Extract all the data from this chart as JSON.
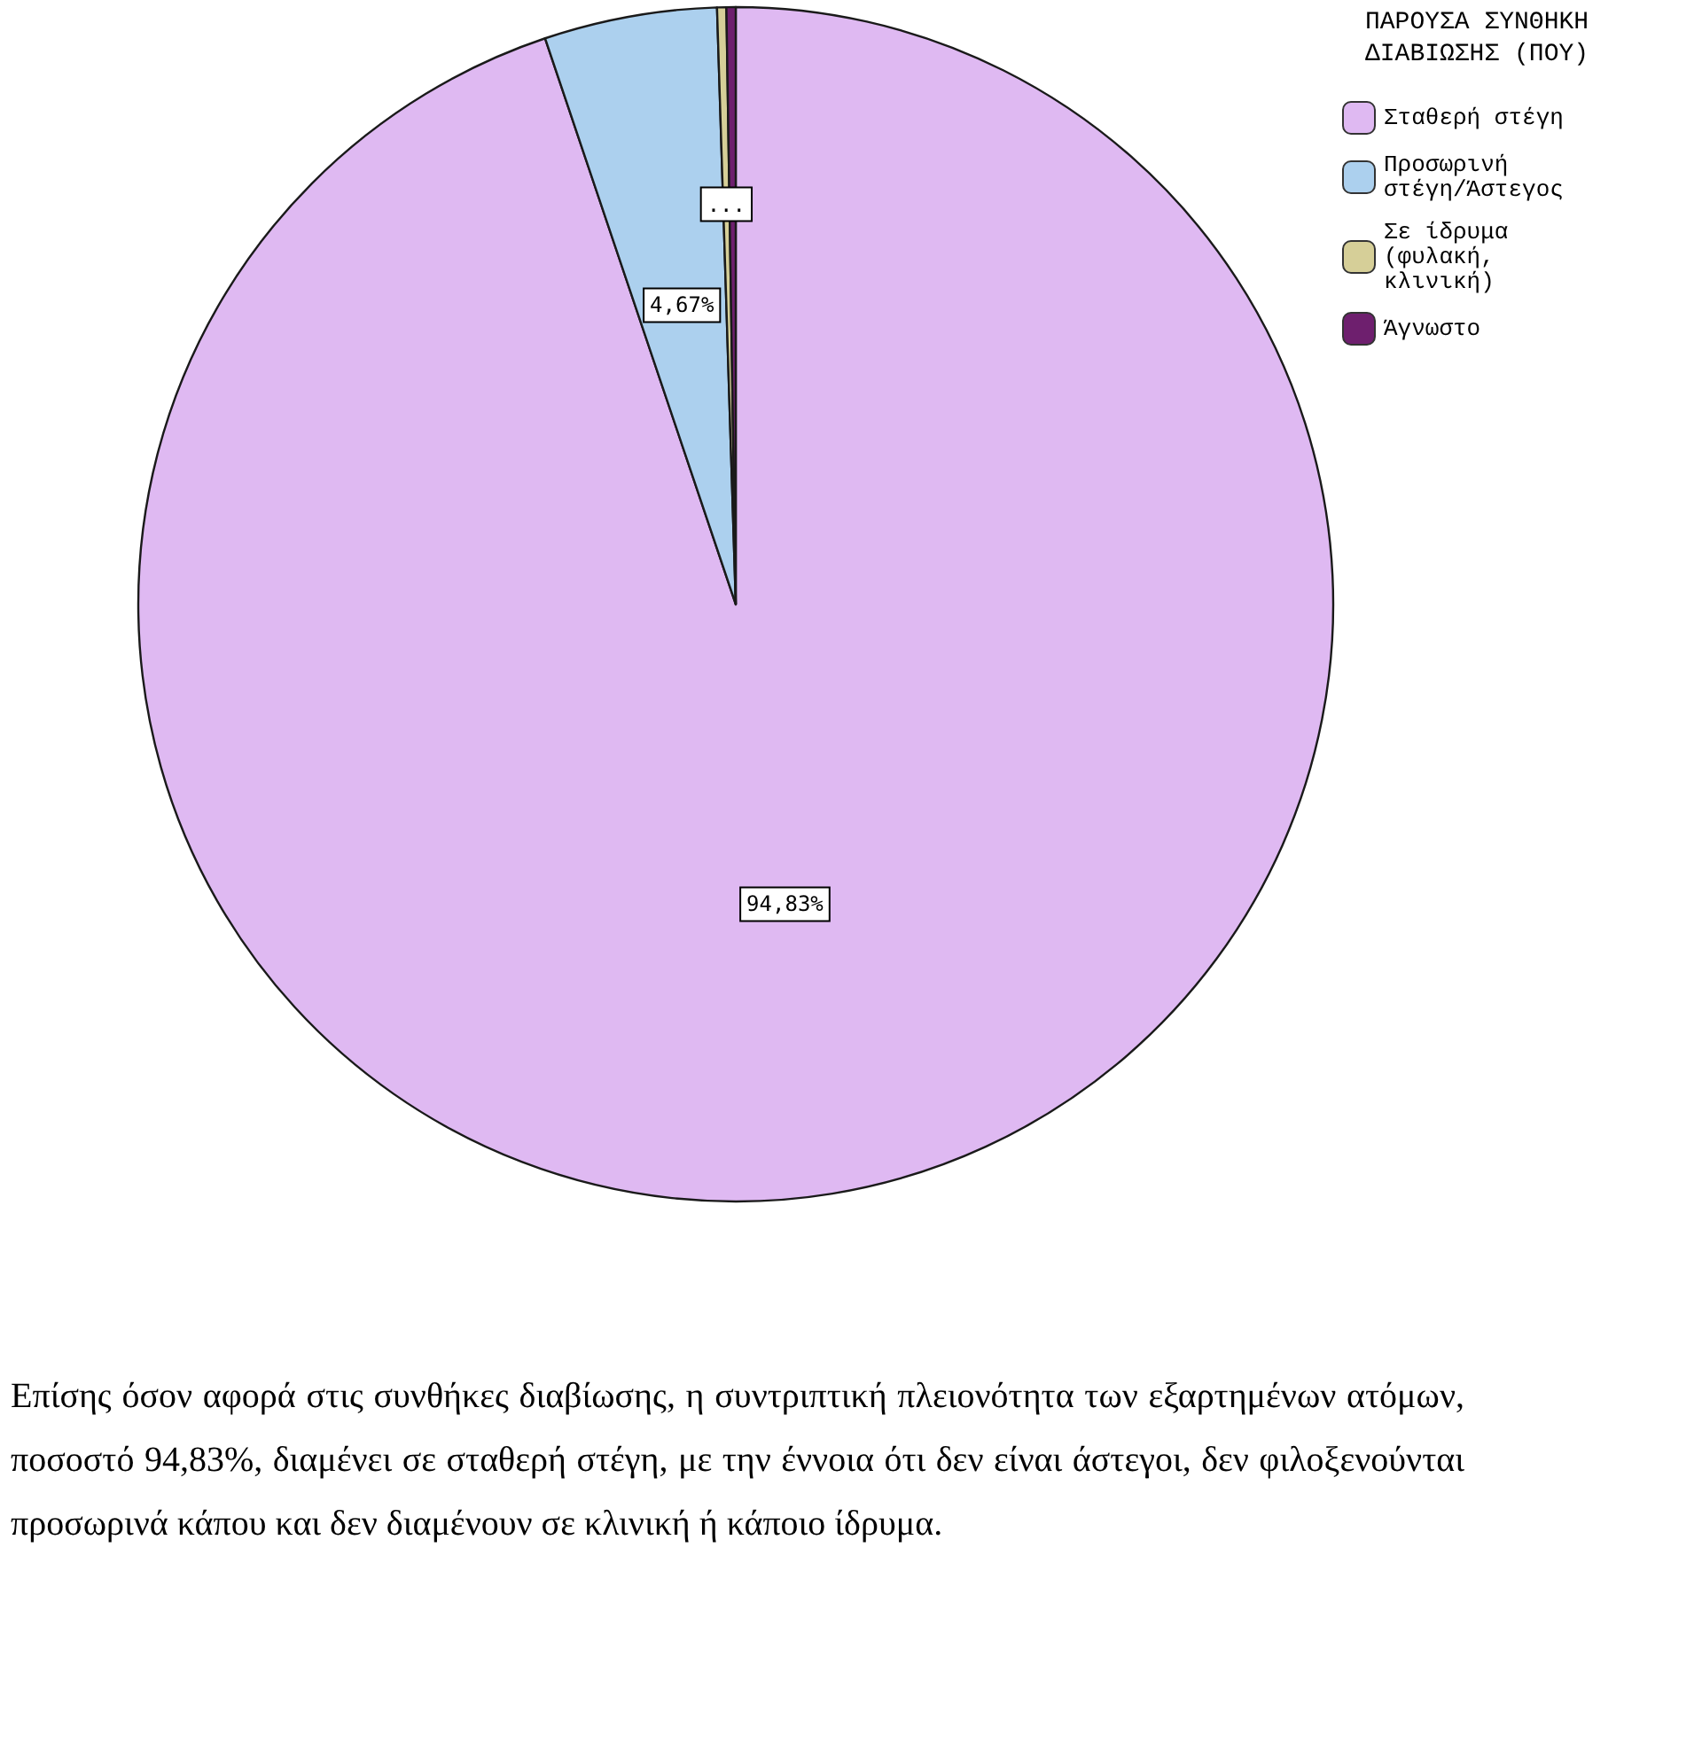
{
  "chart_data": {
    "type": "pie",
    "legend_title": "ΠΑΡΟΥΣΑ ΣΥΝΘΗΚΗ ΔΙΑΒΙΩΣΗΣ (ΠΟΥ)",
    "legend": "top right",
    "categories": [
      "Σταθερή στέγη",
      "Προσωρινή στέγη/Άστεγος",
      "Σε ίδρυμα (φυλακή, κλινική)",
      "Άγνωστο"
    ],
    "values": [
      94.83,
      4.67,
      0.25,
      0.25
    ],
    "colors": [
      "#dfb9f2",
      "#acd0ee",
      "#d6cf98",
      "#6e1f6e"
    ],
    "value_labels": [
      "94,83%",
      "4,67%",
      "...",
      null
    ],
    "annotations": [
      "Επίσης όσον αφορά στις συνθήκες διαβίωσης, η συντριπτική πλειονότητα των εξαρτημένων ατόμων, ποσοστό 94,83%, διαμένει σε σταθερή στέγη, με την έννοια ότι δεν είναι άστεγοι, δεν φιλοξενούνται προσωρινά κάπου και δεν διαμένουν σε κλινική ή κάποιο ίδρυμα."
    ]
  }
}
